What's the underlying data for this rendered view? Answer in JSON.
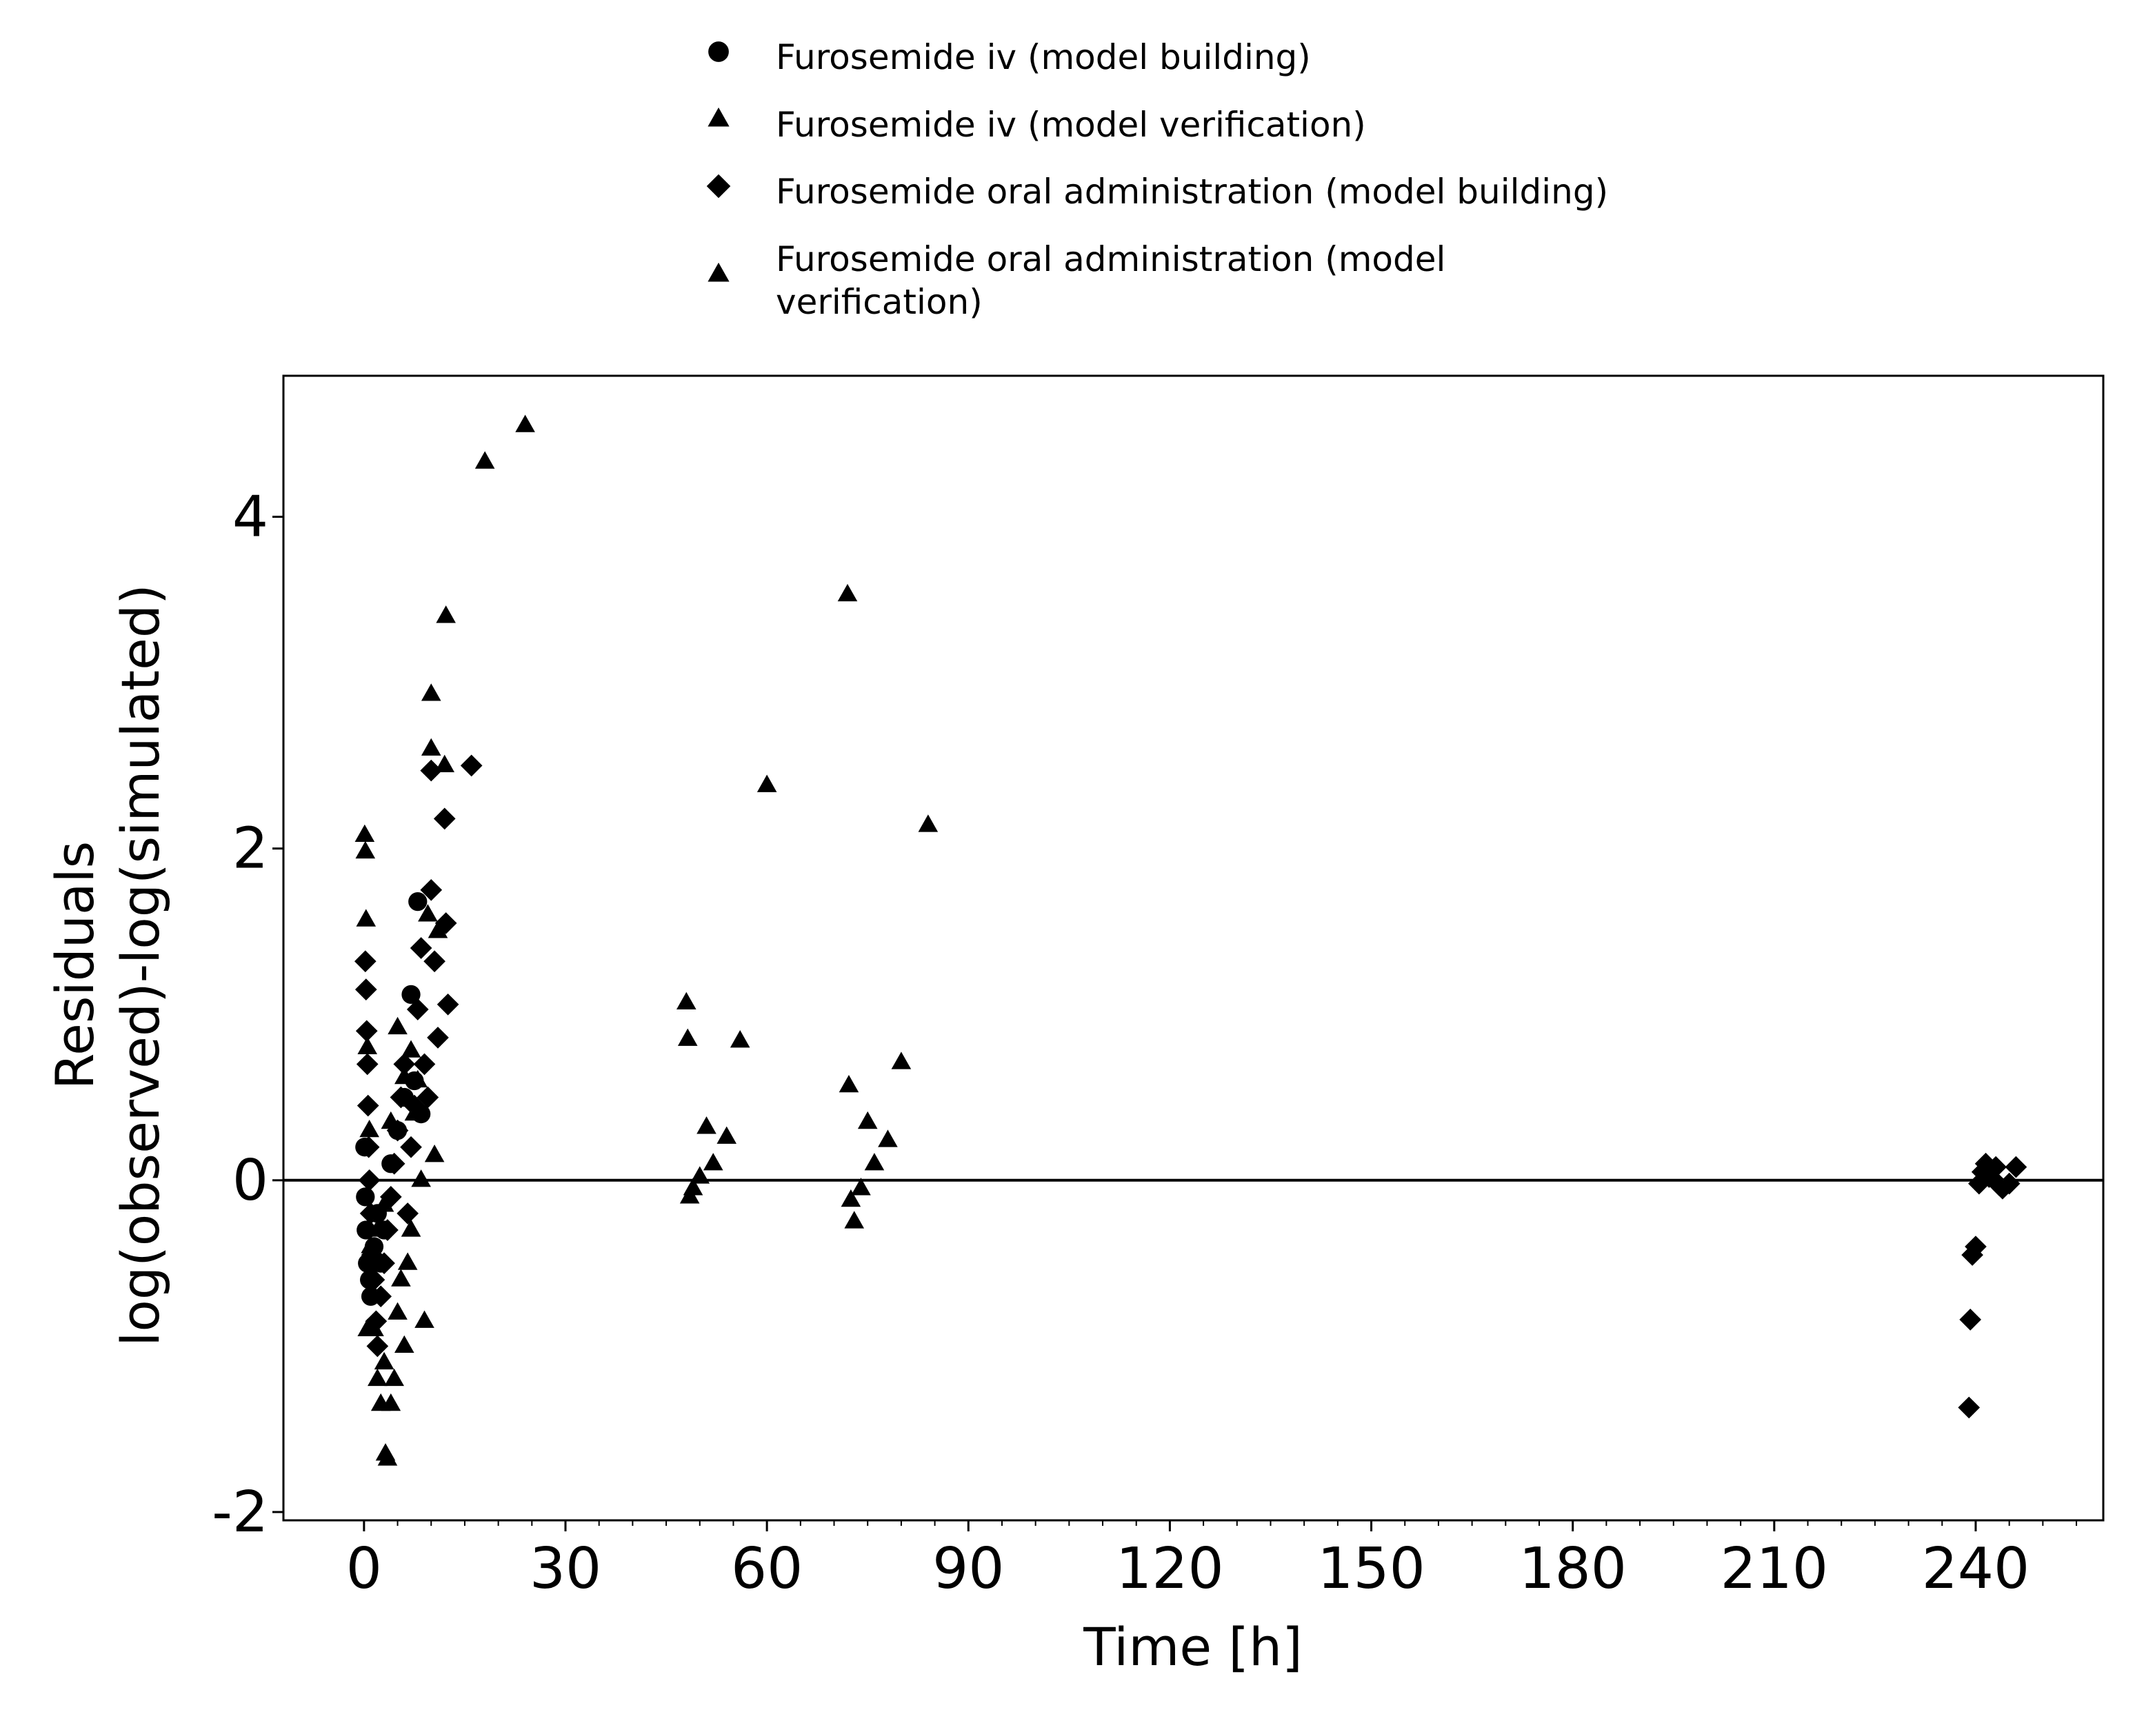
{
  "chart_data": {
    "type": "scatter",
    "title": "",
    "xlabel": "Time [h]",
    "ylabel": [
      "Residuals",
      "log(observed)-log(simulated)"
    ],
    "xlim": [
      -12,
      259
    ],
    "ylim": [
      -2.05,
      4.85
    ],
    "x_ticks": [
      0,
      30,
      60,
      90,
      120,
      150,
      180,
      210,
      240
    ],
    "x_tick_labels": [
      "0",
      "30",
      "60",
      "90",
      "120",
      "150",
      "180",
      "210",
      "240"
    ],
    "y_ticks": [
      -2,
      0,
      2,
      4
    ],
    "y_tick_labels": [
      "-2",
      "0",
      "2",
      "4"
    ],
    "reference_line_y": 0,
    "grid": false,
    "legend_position": "top",
    "series": [
      {
        "name": "Furosemide iv (model building)",
        "marker": "circle",
        "color": "#000000",
        "points": [
          [
            0.1,
            0.2
          ],
          [
            0.2,
            -0.1
          ],
          [
            0.3,
            -0.3
          ],
          [
            0.5,
            -0.5
          ],
          [
            0.8,
            -0.6
          ],
          [
            1.0,
            -0.7
          ],
          [
            1.5,
            -0.4
          ],
          [
            2.0,
            -0.2
          ],
          [
            2.5,
            -0.5
          ],
          [
            3.0,
            -0.3
          ],
          [
            4.0,
            0.1
          ],
          [
            5.0,
            0.3
          ],
          [
            6.0,
            0.5
          ],
          [
            7.0,
            1.12
          ],
          [
            7.5,
            0.6
          ],
          [
            8.0,
            1.68
          ],
          [
            8.5,
            0.4
          ]
        ]
      },
      {
        "name": "Furosemide iv (model verification)",
        "marker": "triangle",
        "color": "#000000",
        "points": [
          [
            0.1,
            2.08
          ],
          [
            0.2,
            1.98
          ],
          [
            0.3,
            1.57
          ],
          [
            0.5,
            0.8
          ],
          [
            0.8,
            0.3
          ],
          [
            1.0,
            -0.4
          ],
          [
            1.5,
            -0.9
          ],
          [
            2.0,
            -1.2
          ],
          [
            2.5,
            -1.35
          ],
          [
            3.0,
            -1.1
          ],
          [
            3.2,
            -1.65
          ],
          [
            3.5,
            -1.68
          ],
          [
            4.0,
            -1.35
          ],
          [
            4.5,
            -1.2
          ],
          [
            5.0,
            -0.8
          ],
          [
            5.5,
            -0.6
          ],
          [
            6.0,
            -1.0
          ],
          [
            6.5,
            -0.5
          ],
          [
            7.0,
            -0.3
          ],
          [
            7.5,
            0.4
          ],
          [
            8.0,
            0.6
          ],
          [
            8.5,
            0.0
          ],
          [
            9.0,
            -0.85
          ],
          [
            9.5,
            1.6
          ],
          [
            10.0,
            2.6
          ],
          [
            10.0,
            2.93
          ],
          [
            10.5,
            0.15
          ],
          [
            11.0,
            1.5
          ],
          [
            12.0,
            2.5
          ],
          [
            12.2,
            3.4
          ],
          [
            18.0,
            4.33
          ],
          [
            24.0,
            4.55
          ],
          [
            48.0,
            1.07
          ],
          [
            48.2,
            0.85
          ],
          [
            48.5,
            -0.1
          ],
          [
            49.0,
            -0.05
          ],
          [
            50.0,
            0.02
          ],
          [
            51.0,
            0.32
          ],
          [
            52.0,
            0.1
          ],
          [
            54.0,
            0.26
          ],
          [
            56.0,
            0.84
          ],
          [
            60.0,
            2.38
          ],
          [
            72.0,
            3.53
          ],
          [
            72.2,
            0.57
          ],
          [
            72.5,
            -0.12
          ],
          [
            73.0,
            -0.25
          ],
          [
            74.0,
            -0.05
          ],
          [
            75.0,
            0.35
          ],
          [
            76.0,
            0.1
          ],
          [
            78.0,
            0.24
          ],
          [
            80.0,
            0.71
          ],
          [
            84.0,
            2.14
          ]
        ]
      },
      {
        "name": "Furosemide oral administration (model building)",
        "marker": "diamond",
        "color": "#000000",
        "points": [
          [
            0.2,
            1.32
          ],
          [
            0.3,
            1.15
          ],
          [
            0.4,
            0.9
          ],
          [
            0.5,
            0.7
          ],
          [
            0.6,
            0.45
          ],
          [
            0.7,
            0.2
          ],
          [
            0.8,
            0.0
          ],
          [
            1.0,
            -0.2
          ],
          [
            1.2,
            -0.45
          ],
          [
            1.5,
            -0.6
          ],
          [
            1.8,
            -0.85
          ],
          [
            2.0,
            -1.0
          ],
          [
            2.5,
            -0.7
          ],
          [
            3.0,
            -0.5
          ],
          [
            3.5,
            -0.3
          ],
          [
            4.0,
            -0.1
          ],
          [
            4.5,
            0.1
          ],
          [
            5.0,
            0.3
          ],
          [
            5.5,
            0.5
          ],
          [
            6.0,
            0.7
          ],
          [
            6.5,
            -0.2
          ],
          [
            7.0,
            0.2
          ],
          [
            7.5,
            0.45
          ],
          [
            8.0,
            1.03
          ],
          [
            8.5,
            1.4
          ],
          [
            9.0,
            0.7
          ],
          [
            9.5,
            0.5
          ],
          [
            10.0,
            1.75
          ],
          [
            10.0,
            2.47
          ],
          [
            10.5,
            1.32
          ],
          [
            11.0,
            0.86
          ],
          [
            12.0,
            2.18
          ],
          [
            12.2,
            1.55
          ],
          [
            12.5,
            1.06
          ],
          [
            16.0,
            2.5
          ],
          [
            239.0,
            -1.37
          ],
          [
            239.2,
            -0.84
          ],
          [
            239.5,
            -0.45
          ],
          [
            240.0,
            -0.4
          ],
          [
            240.5,
            -0.02
          ],
          [
            241.0,
            0.05
          ],
          [
            241.5,
            0.1
          ],
          [
            242.0,
            0.02
          ],
          [
            243.0,
            0.08
          ],
          [
            243.5,
            -0.03
          ],
          [
            244.0,
            -0.05
          ],
          [
            245.0,
            -0.02
          ],
          [
            246.0,
            0.08
          ]
        ]
      },
      {
        "name": "Furosemide oral administration (model verification)",
        "marker": "triangle",
        "color": "#000000",
        "points": [
          [
            0.5,
            -0.9
          ],
          [
            1.0,
            -0.5
          ],
          [
            2.0,
            -0.3
          ],
          [
            3.0,
            -0.15
          ],
          [
            4.0,
            0.35
          ],
          [
            5.0,
            0.92
          ],
          [
            6.0,
            0.62
          ],
          [
            7.0,
            0.78
          ]
        ]
      }
    ]
  }
}
